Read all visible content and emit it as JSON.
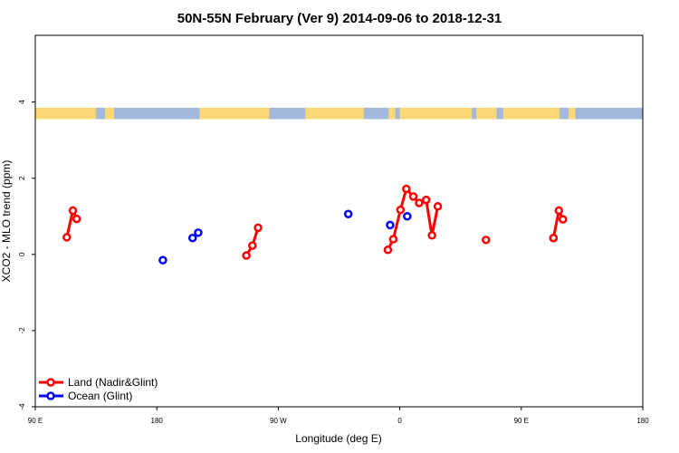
{
  "chart_data": {
    "type": "scatter",
    "title": "50N-55N February (Ver 9)   2014-09-06 to 2018-12-31",
    "xlabel": "Longitude (deg E)",
    "ylabel": "XCO2 - MLO trend (ppm)",
    "xlim": [
      -90,
      180
    ],
    "ylim": [
      -4,
      5.75
    ],
    "x_ticks": [
      {
        "value": -90,
        "label": "90 E"
      },
      {
        "value": -36,
        "label": "180"
      },
      {
        "value": 18,
        "label": "90 W"
      },
      {
        "value": 72,
        "label": "0"
      },
      {
        "value": 126,
        "label": "90 E"
      },
      {
        "value": 180,
        "label": "180"
      }
    ],
    "y_ticks": [
      {
        "value": -4,
        "label": "-4"
      },
      {
        "value": -2,
        "label": "-2"
      },
      {
        "value": 0,
        "label": "0"
      },
      {
        "value": 2,
        "label": "2"
      },
      {
        "value": 4,
        "label": "4"
      }
    ],
    "map_strip": {
      "y_range": [
        3.55,
        3.85
      ],
      "land_color": "#fcd775",
      "ocean_color": "#a3b9db"
    },
    "series": [
      {
        "name": "Land (Nadir&Glint)",
        "color": "#ff0000",
        "segments": [
          [
            [
              -76,
              0.45
            ],
            [
              -73.3,
              1.15
            ],
            [
              -71.6,
              0.93
            ]
          ],
          [
            [
              3.8,
              -0.03
            ],
            [
              6.5,
              0.23
            ],
            [
              9,
              0.7
            ]
          ],
          [
            [
              66.7,
              0.12
            ],
            [
              69.1,
              0.4
            ],
            [
              72.3,
              1.17
            ],
            [
              74.9,
              1.72
            ],
            [
              78,
              1.52
            ],
            [
              80.6,
              1.35
            ],
            [
              83.7,
              1.43
            ],
            [
              86.3,
              0.5
            ],
            [
              88.9,
              1.26
            ]
          ],
          [
            [
              140.3,
              0.43
            ],
            [
              142.7,
              1.15
            ],
            [
              144.5,
              0.92
            ]
          ]
        ],
        "points": [
          [
            140.3,
            0.43
          ],
          [
            110.3,
            0.38
          ]
        ]
      },
      {
        "name": "Ocean (Glint)",
        "color": "#0000ff",
        "segments": [],
        "points": [
          [
            -33.3,
            -0.15
          ],
          [
            -20.1,
            0.43
          ],
          [
            -17.6,
            0.57
          ],
          [
            49.1,
            1.06
          ],
          [
            67.7,
            0.77
          ],
          [
            75.3,
            1.0
          ]
        ]
      }
    ],
    "legend": {
      "position": "bottom-left"
    }
  }
}
